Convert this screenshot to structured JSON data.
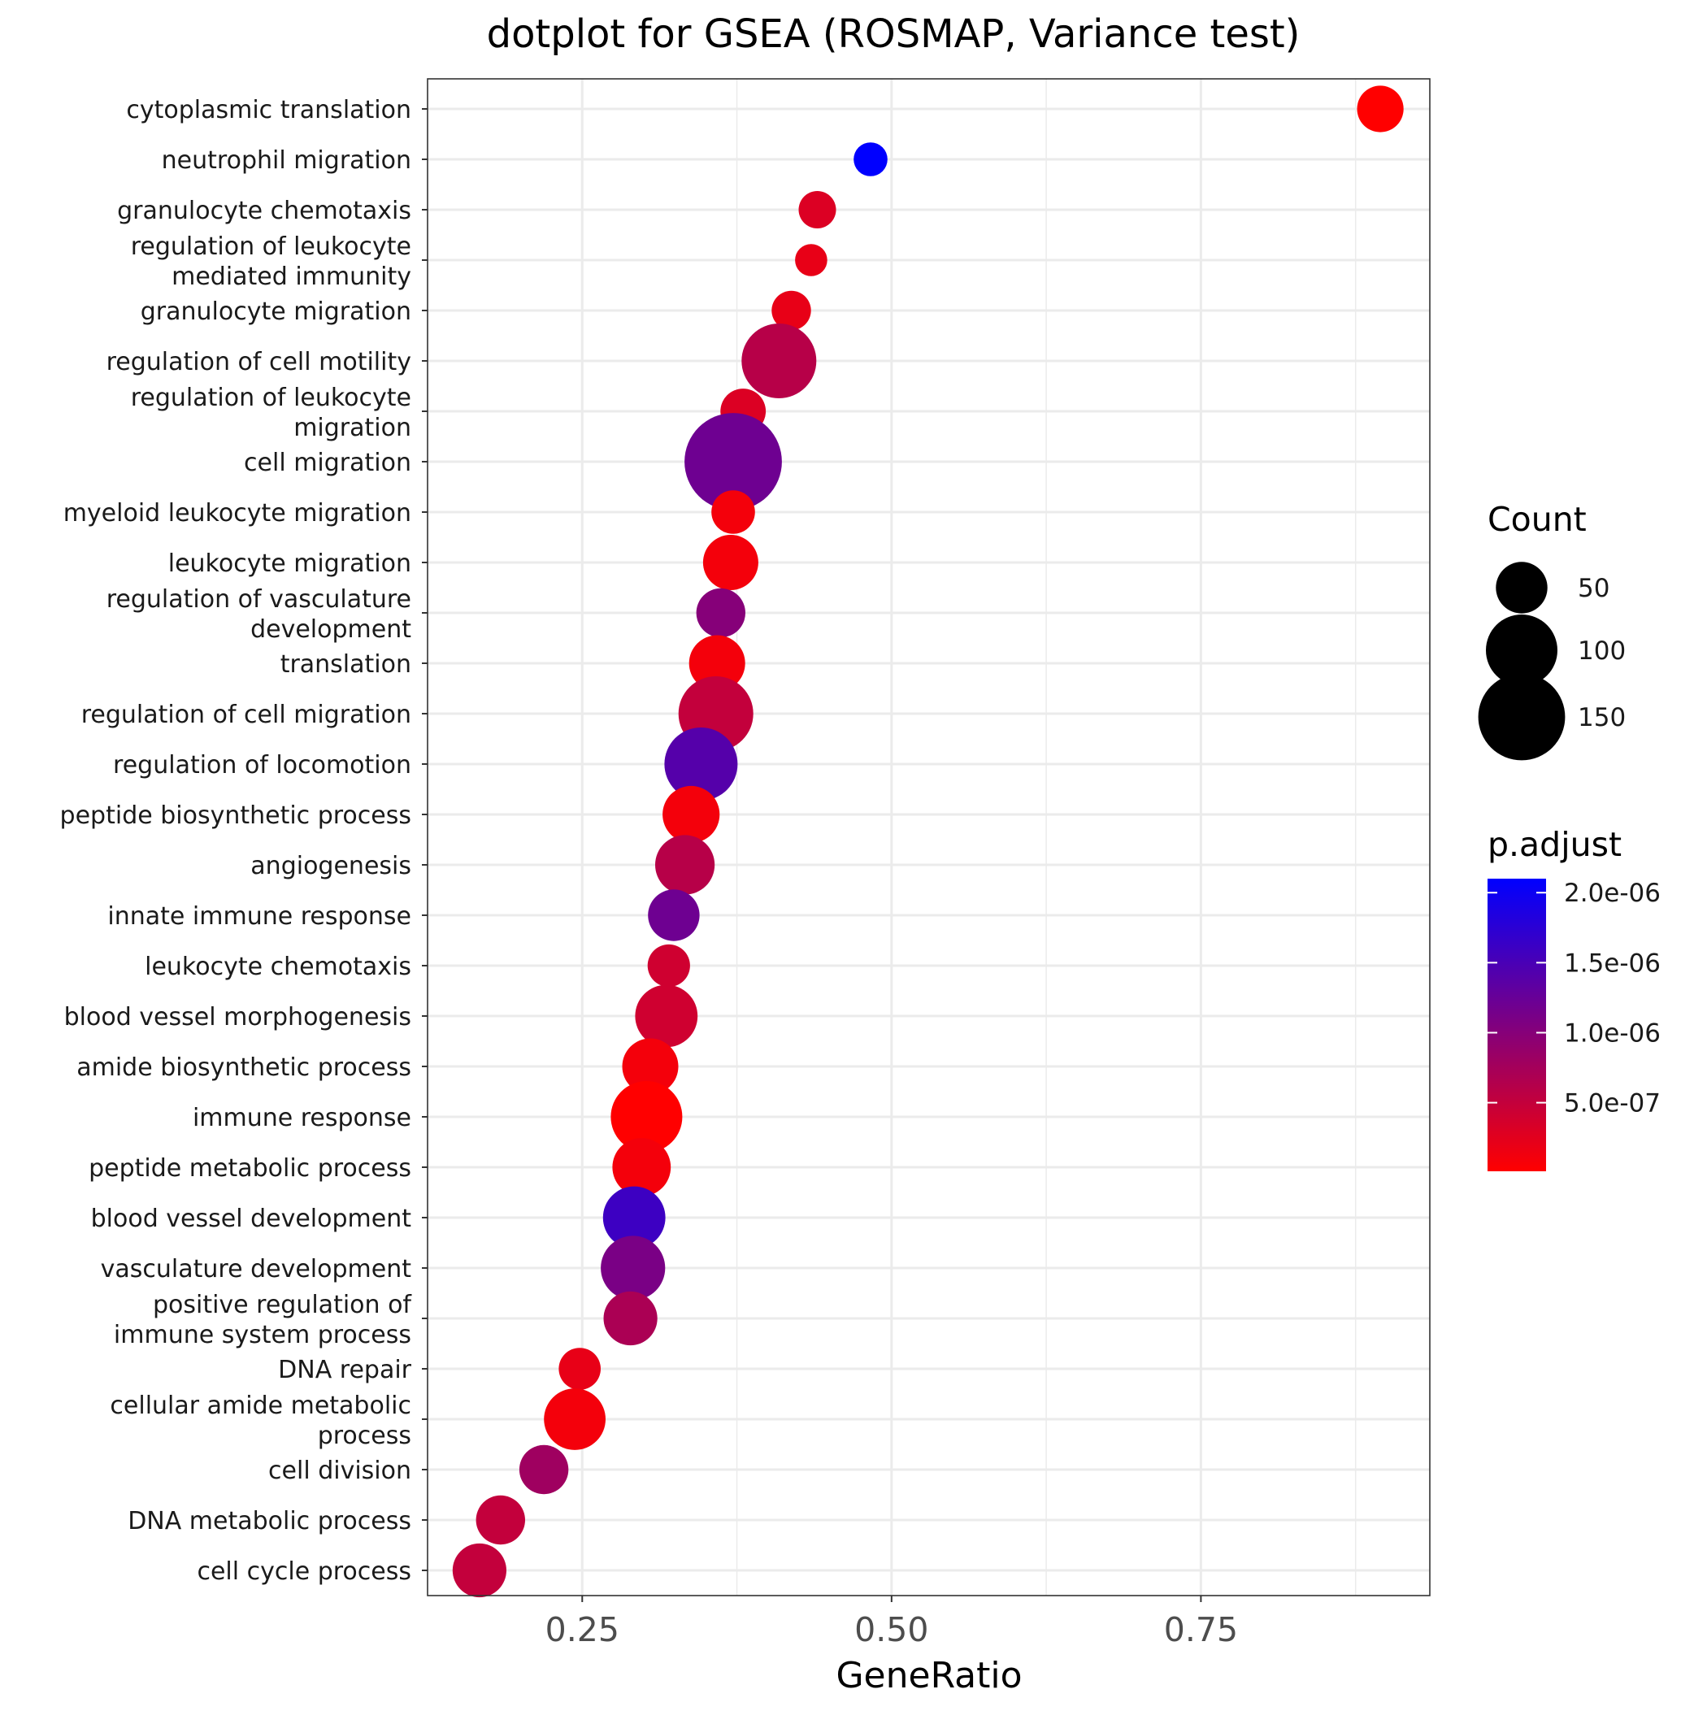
{
  "chart_data": {
    "type": "scatter",
    "title": "dotplot for GSEA (ROSMAP, Variance test)",
    "xlabel": "GeneRatio",
    "ylabel": "",
    "xlim": [
      0.125,
      0.935
    ],
    "x_ticks": [
      0.25,
      0.5,
      0.75
    ],
    "x_tick_labels": [
      "0.25",
      "0.50",
      "0.75"
    ],
    "grid": true,
    "categories": [
      "cytoplasmic translation",
      "neutrophil migration",
      "granulocyte chemotaxis",
      "regulation of leukocyte mediated immunity",
      "granulocyte migration",
      "regulation of cell motility",
      "regulation of leukocyte migration",
      "cell migration",
      "myeloid leukocyte migration",
      "leukocyte migration",
      "regulation of vasculature development",
      "translation",
      "regulation of cell migration",
      "regulation of locomotion",
      "peptide biosynthetic process",
      "angiogenesis",
      "innate immune response",
      "leukocyte chemotaxis",
      "blood vessel morphogenesis",
      "amide biosynthetic process",
      "immune response",
      "peptide metabolic process",
      "blood vessel development",
      "vasculature development",
      "positive regulation of immune system process",
      "DNA repair",
      "cellular amide metabolic process",
      "cell division",
      "DNA metabolic process",
      "cell cycle process"
    ],
    "category_label_lines": [
      [
        "cytoplasmic translation"
      ],
      [
        "neutrophil migration"
      ],
      [
        "granulocyte chemotaxis"
      ],
      [
        "regulation of leukocyte",
        "mediated immunity"
      ],
      [
        "granulocyte migration"
      ],
      [
        "regulation of cell motility"
      ],
      [
        "regulation of leukocyte",
        "migration"
      ],
      [
        "cell migration"
      ],
      [
        "myeloid leukocyte migration"
      ],
      [
        "leukocyte migration"
      ],
      [
        "regulation of vasculature",
        "development"
      ],
      [
        "translation"
      ],
      [
        "regulation of cell migration"
      ],
      [
        "regulation of locomotion"
      ],
      [
        "peptide biosynthetic process"
      ],
      [
        "angiogenesis"
      ],
      [
        "innate immune response"
      ],
      [
        "leukocyte chemotaxis"
      ],
      [
        "blood vessel morphogenesis"
      ],
      [
        "amide biosynthetic process"
      ],
      [
        "immune response"
      ],
      [
        "peptide metabolic process"
      ],
      [
        "blood vessel development"
      ],
      [
        "vasculature development"
      ],
      [
        "positive regulation of",
        "immune system process"
      ],
      [
        "DNA repair"
      ],
      [
        "cellular amide metabolic",
        "process"
      ],
      [
        "cell division"
      ],
      [
        "DNA metabolic process"
      ],
      [
        "cell cycle process"
      ]
    ],
    "gene_ratio": [
      0.895,
      0.483,
      0.44,
      0.435,
      0.419,
      0.409,
      0.38,
      0.372,
      0.372,
      0.37,
      0.362,
      0.359,
      0.358,
      0.346,
      0.338,
      0.333,
      0.324,
      0.32,
      0.318,
      0.305,
      0.302,
      0.298,
      0.292,
      0.291,
      0.289,
      0.248,
      0.244,
      0.219,
      0.184,
      0.167
    ],
    "count": [
      40,
      20,
      25,
      18,
      28,
      110,
      38,
      190,
      35,
      58,
      45,
      60,
      110,
      105,
      62,
      68,
      50,
      33,
      75,
      60,
      100,
      65,
      75,
      80,
      55,
      32,
      73,
      45,
      45,
      55
    ],
    "p_adjust": [
      1e-08,
      2.1e-06,
      3e-07,
      2e-07,
      2e-07,
      6e-07,
      3e-07,
      1.2e-06,
      1e-07,
      1e-07,
      1e-06,
      1e-07,
      5e-07,
      1.4e-06,
      1e-07,
      6e-07,
      1.2e-06,
      4e-07,
      4e-07,
      1e-07,
      1e-08,
      1e-07,
      1.6e-06,
      1.1e-06,
      7e-07,
      2e-07,
      1e-07,
      8e-07,
      5e-07,
      5e-07
    ],
    "size_legend": {
      "title": "Count",
      "values": [
        50,
        100,
        150
      ],
      "labels": [
        "50",
        "100",
        "150"
      ]
    },
    "color_legend": {
      "title": "p.adjust",
      "low_color": "#ff0000",
      "high_color": "#0000ff",
      "min": 1e-08,
      "max": 2.1e-06,
      "tick_values": [
        2e-06,
        1.5e-06,
        1e-06,
        5e-07
      ],
      "tick_labels": [
        "2.0e-06",
        "1.5e-06",
        "1.0e-06",
        "5.0e-07"
      ]
    }
  }
}
